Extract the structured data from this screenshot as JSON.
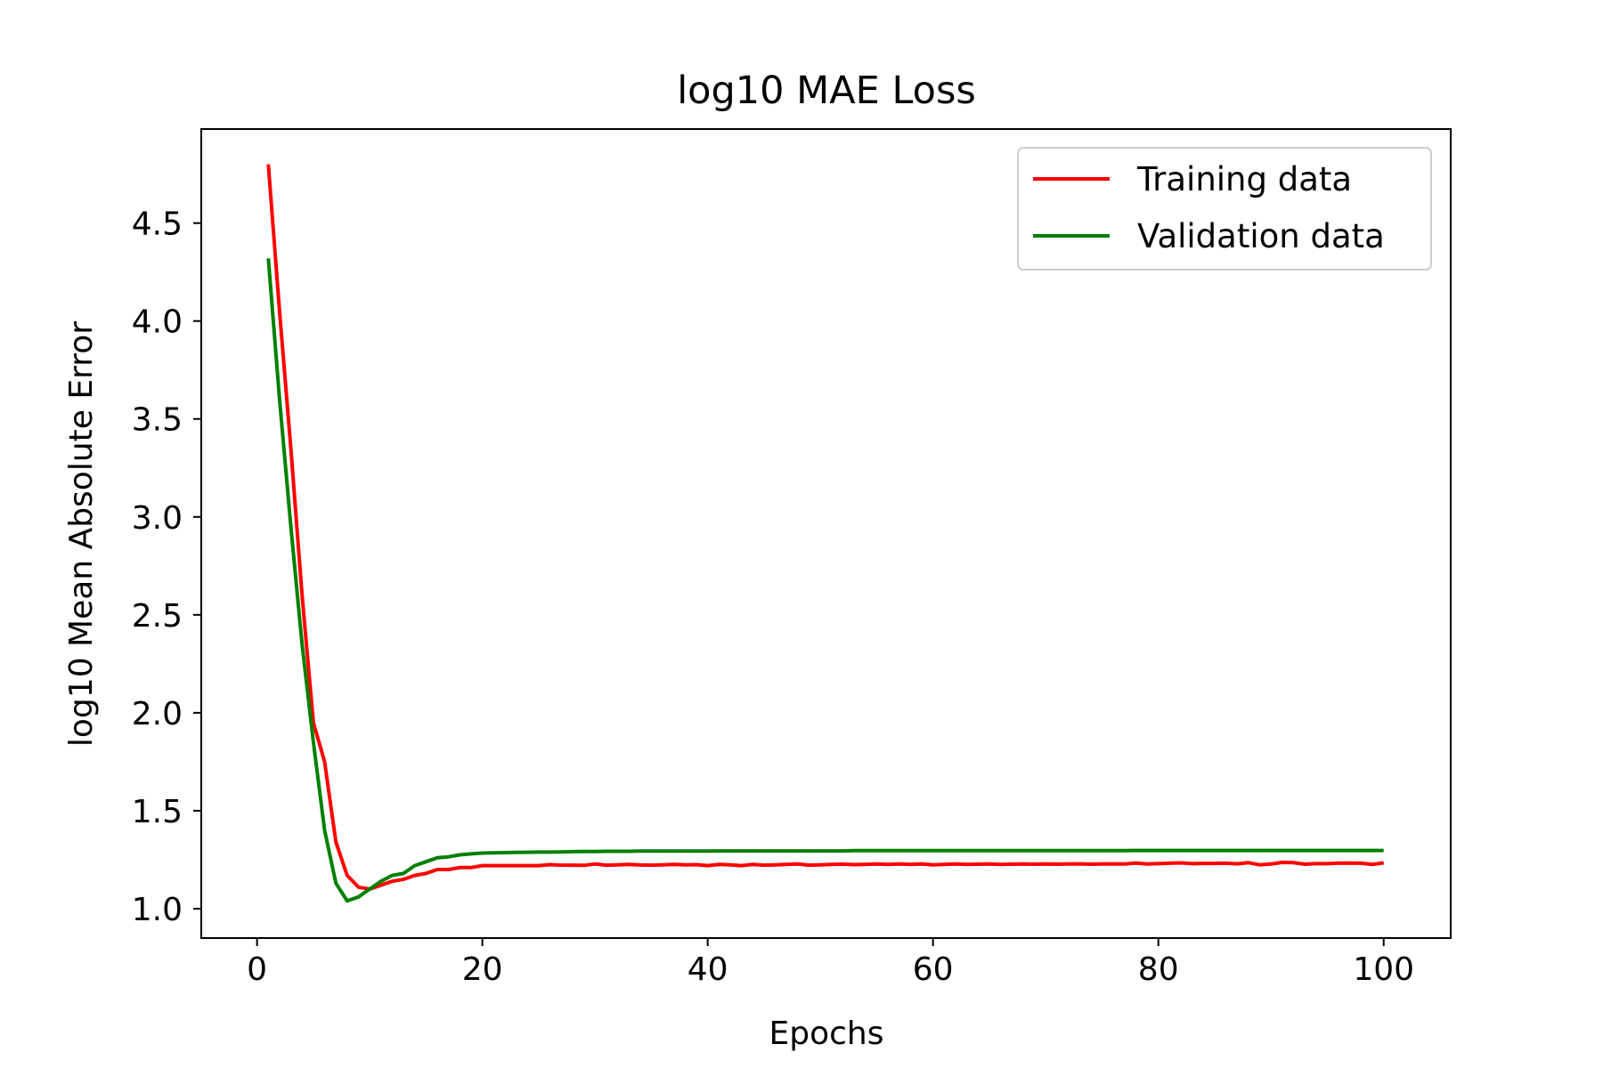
{
  "chart_data": {
    "type": "line",
    "title": "log10 MAE Loss",
    "xlabel": "Epochs",
    "ylabel": "log10 Mean Absolute Error",
    "xlim": [
      -4.95,
      105.95
    ],
    "ylim": [
      0.85,
      4.98
    ],
    "xticks": [
      0,
      20,
      40,
      60,
      80,
      100
    ],
    "xtick_labels": [
      "0",
      "20",
      "40",
      "60",
      "80",
      "100"
    ],
    "yticks": [
      1.0,
      1.5,
      2.0,
      2.5,
      3.0,
      3.5,
      4.0,
      4.5
    ],
    "ytick_labels": [
      "1.0",
      "1.5",
      "2.0",
      "2.5",
      "3.0",
      "3.5",
      "4.0",
      "4.5"
    ],
    "grid": false,
    "legend_position": "top-right",
    "series": [
      {
        "name": "Training data",
        "color": "#ff0000",
        "x": [
          1,
          2,
          3,
          4,
          5,
          6,
          7,
          8,
          9,
          10,
          11,
          12,
          13,
          14,
          15,
          16,
          17,
          18,
          19,
          20,
          21,
          22,
          23,
          24,
          25,
          26,
          27,
          28,
          29,
          30,
          31,
          32,
          33,
          34,
          35,
          36,
          37,
          38,
          39,
          40,
          41,
          42,
          43,
          44,
          45,
          46,
          47,
          48,
          49,
          50,
          51,
          52,
          53,
          54,
          55,
          56,
          57,
          58,
          59,
          60,
          61,
          62,
          63,
          64,
          65,
          66,
          67,
          68,
          69,
          70,
          71,
          72,
          73,
          74,
          75,
          76,
          77,
          78,
          79,
          80,
          81,
          82,
          83,
          84,
          85,
          86,
          87,
          88,
          89,
          90,
          91,
          92,
          93,
          94,
          95,
          96,
          97,
          98,
          99,
          100
        ],
        "values": [
          4.8,
          4.05,
          3.35,
          2.6,
          1.95,
          1.75,
          1.34,
          1.17,
          1.11,
          1.1,
          1.12,
          1.14,
          1.15,
          1.17,
          1.18,
          1.2,
          1.2,
          1.21,
          1.21,
          1.22,
          1.22,
          1.22,
          1.22,
          1.22,
          1.22,
          1.225,
          1.222,
          1.222,
          1.221,
          1.228,
          1.222,
          1.224,
          1.226,
          1.223,
          1.222,
          1.224,
          1.226,
          1.224,
          1.225,
          1.22,
          1.226,
          1.224,
          1.22,
          1.226,
          1.222,
          1.224,
          1.226,
          1.228,
          1.222,
          1.224,
          1.226,
          1.227,
          1.225,
          1.226,
          1.228,
          1.226,
          1.228,
          1.226,
          1.228,
          1.224,
          1.226,
          1.228,
          1.226,
          1.227,
          1.228,
          1.226,
          1.227,
          1.228,
          1.227,
          1.228,
          1.227,
          1.228,
          1.229,
          1.227,
          1.228,
          1.229,
          1.228,
          1.233,
          1.228,
          1.23,
          1.232,
          1.234,
          1.23,
          1.231,
          1.231,
          1.232,
          1.229,
          1.235,
          1.224,
          1.228,
          1.236,
          1.235,
          1.227,
          1.23,
          1.23,
          1.232,
          1.233,
          1.232,
          1.226,
          1.234
        ]
      },
      {
        "name": "Validation data",
        "color": "#008000",
        "x": [
          1,
          2,
          3,
          4,
          5,
          6,
          7,
          8,
          9,
          10,
          11,
          12,
          13,
          14,
          15,
          16,
          17,
          18,
          19,
          20,
          21,
          22,
          23,
          24,
          25,
          26,
          27,
          28,
          29,
          30,
          31,
          32,
          33,
          34,
          35,
          36,
          37,
          38,
          39,
          40,
          41,
          42,
          43,
          44,
          45,
          46,
          47,
          48,
          49,
          50,
          51,
          52,
          53,
          54,
          55,
          56,
          57,
          58,
          59,
          60,
          61,
          62,
          63,
          64,
          65,
          66,
          67,
          68,
          69,
          70,
          71,
          72,
          73,
          74,
          75,
          76,
          77,
          78,
          79,
          80,
          81,
          82,
          83,
          84,
          85,
          86,
          87,
          88,
          89,
          90,
          91,
          92,
          93,
          94,
          95,
          96,
          97,
          98,
          99,
          100
        ],
        "values": [
          4.32,
          3.6,
          2.95,
          2.35,
          1.85,
          1.4,
          1.13,
          1.04,
          1.06,
          1.1,
          1.14,
          1.17,
          1.18,
          1.22,
          1.24,
          1.26,
          1.265,
          1.275,
          1.28,
          1.284,
          1.285,
          1.286,
          1.287,
          1.288,
          1.289,
          1.289,
          1.29,
          1.291,
          1.292,
          1.292,
          1.293,
          1.293,
          1.293,
          1.294,
          1.294,
          1.294,
          1.294,
          1.294,
          1.294,
          1.294,
          1.295,
          1.295,
          1.295,
          1.295,
          1.295,
          1.295,
          1.295,
          1.295,
          1.295,
          1.295,
          1.295,
          1.295,
          1.296,
          1.296,
          1.296,
          1.296,
          1.296,
          1.296,
          1.296,
          1.296,
          1.296,
          1.296,
          1.296,
          1.296,
          1.296,
          1.296,
          1.296,
          1.296,
          1.296,
          1.296,
          1.296,
          1.296,
          1.296,
          1.296,
          1.296,
          1.296,
          1.296,
          1.297,
          1.297,
          1.297,
          1.297,
          1.297,
          1.297,
          1.297,
          1.297,
          1.297,
          1.297,
          1.297,
          1.297,
          1.297,
          1.297,
          1.297,
          1.297,
          1.297,
          1.297,
          1.297,
          1.297,
          1.297,
          1.297,
          1.297
        ]
      }
    ]
  }
}
